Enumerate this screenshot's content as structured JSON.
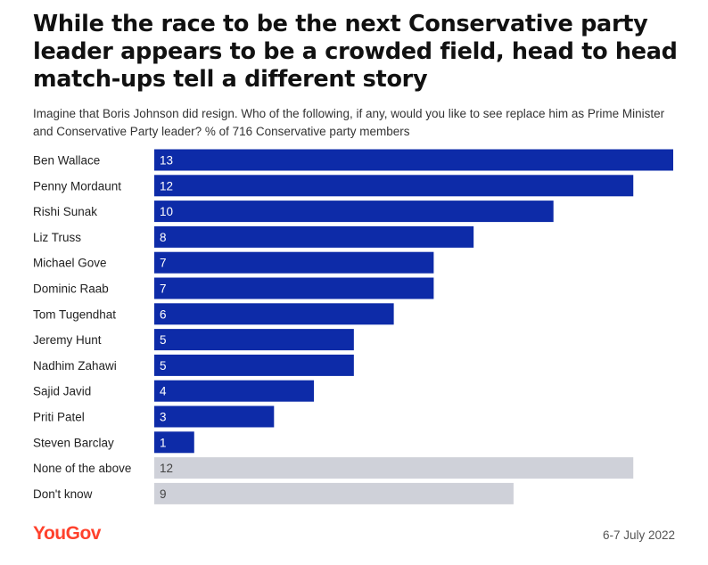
{
  "title": "While the race to be the next Conservative party leader appears to be a crowded field, head to head match-ups tell a different story",
  "subtitle": "Imagine that Boris Johnson did resign. Who of the following, if any, would you like to see replace him as Prime Minister and Conservative Party leader? % of 716 Conservative party members",
  "footer": {
    "logo": "YouGov",
    "date": "6-7 July 2022"
  },
  "colors": {
    "primary_bar": "#0d2ba8",
    "secondary_bar": "#cfd1d9",
    "primary_text": "#ffffff",
    "secondary_text": "#444444",
    "logo": "#ff412c"
  },
  "chart_data": {
    "type": "bar",
    "orientation": "horizontal",
    "unit": "%",
    "categories": [
      "Ben Wallace",
      "Penny Mordaunt",
      "Rishi Sunak",
      "Liz Truss",
      "Michael Gove",
      "Dominic Raab",
      "Tom Tugendhat",
      "Jeremy Hunt",
      "Nadhim Zahawi",
      "Sajid Javid",
      "Priti Patel",
      "Steven Barclay",
      "None of the above",
      "Don't know"
    ],
    "values": [
      13,
      12,
      10,
      8,
      7,
      7,
      6,
      5,
      5,
      4,
      3,
      1,
      12,
      9
    ],
    "bar_group": [
      "candidate",
      "candidate",
      "candidate",
      "candidate",
      "candidate",
      "candidate",
      "candidate",
      "candidate",
      "candidate",
      "candidate",
      "candidate",
      "candidate",
      "other",
      "other"
    ],
    "xlim": [
      0,
      13
    ],
    "grid": false,
    "legend": "none"
  }
}
